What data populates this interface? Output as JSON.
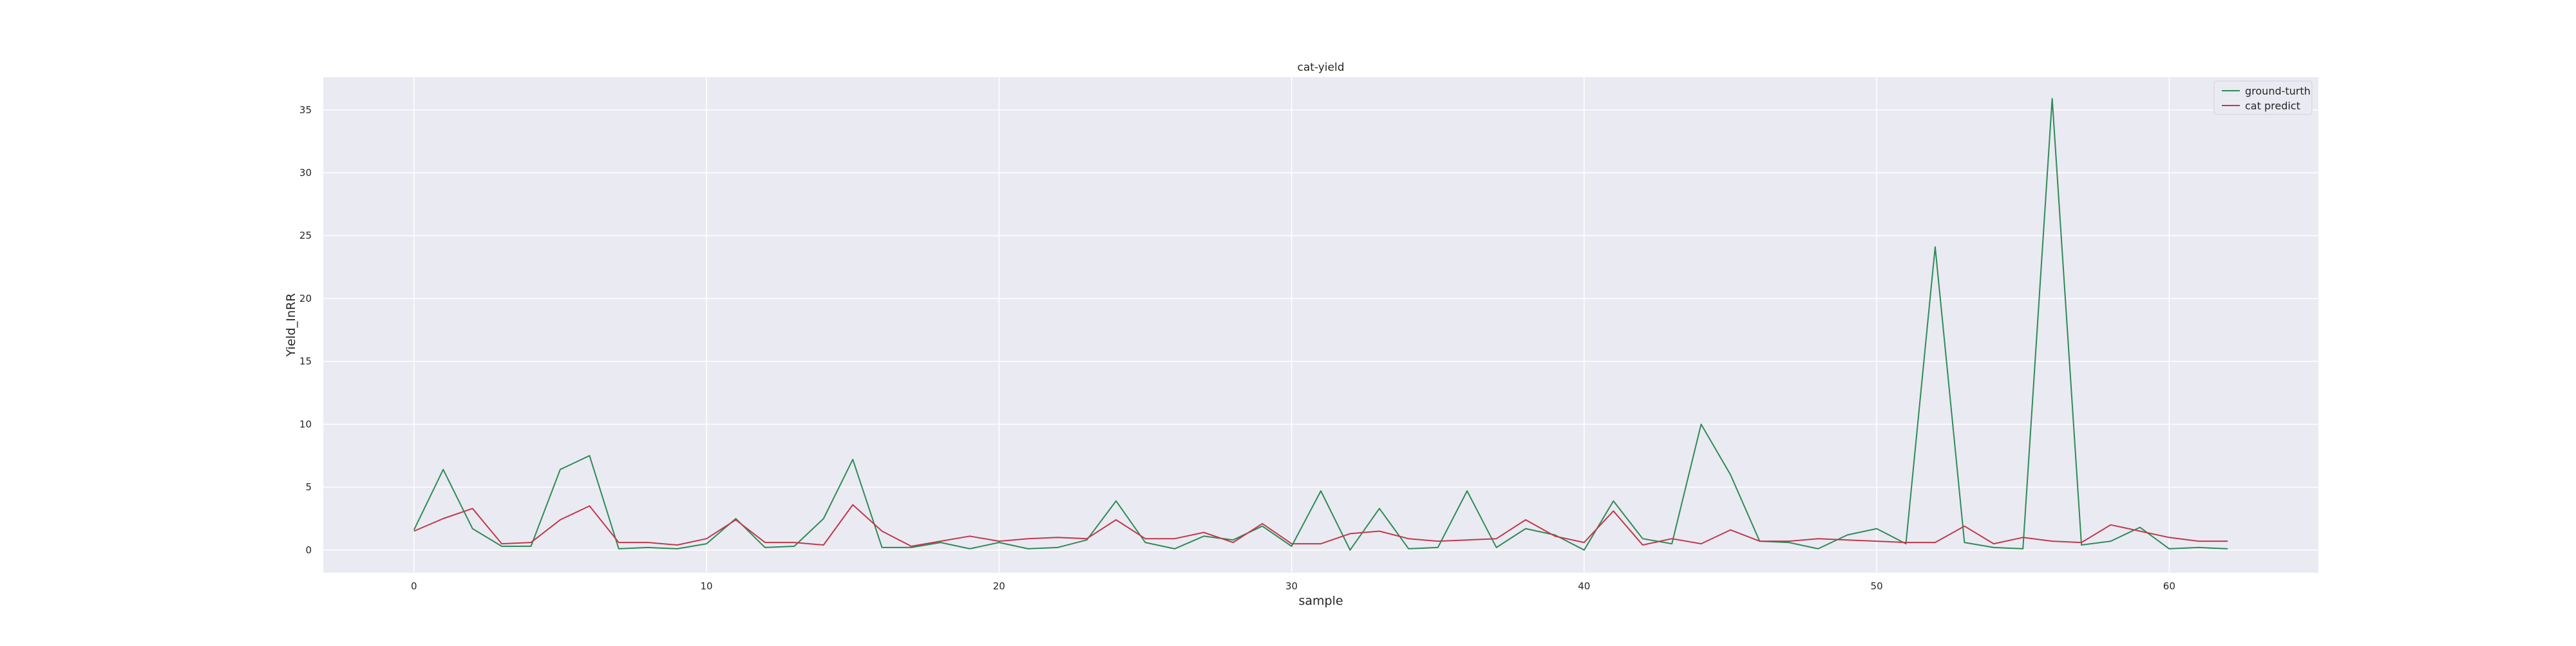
{
  "chart_data": {
    "type": "line",
    "title": "cat-yield",
    "xlabel": "sample",
    "ylabel": "Yield_InRR",
    "xlim": [
      -3.1,
      65.1
    ],
    "ylim": [
      -1.8,
      37.6
    ],
    "x_ticks": [
      0,
      10,
      20,
      30,
      40,
      50,
      60
    ],
    "y_ticks": [
      0,
      5,
      10,
      15,
      20,
      25,
      30,
      35
    ],
    "grid": true,
    "legend_position": "top-right",
    "colors": {
      "background": "#eaeaf2",
      "grid": "#ffffff"
    },
    "x": [
      0,
      1,
      2,
      3,
      4,
      5,
      6,
      7,
      8,
      9,
      10,
      11,
      12,
      13,
      14,
      15,
      16,
      17,
      18,
      19,
      20,
      21,
      22,
      23,
      24,
      25,
      26,
      27,
      28,
      29,
      30,
      31,
      32,
      33,
      34,
      35,
      36,
      37,
      38,
      39,
      40,
      41,
      42,
      43,
      44,
      45,
      46,
      47,
      48,
      49,
      50,
      51,
      52,
      53,
      54,
      55,
      56,
      57,
      58,
      59,
      60,
      61,
      62
    ],
    "series": [
      {
        "name": "ground-turth",
        "color": "#2e8b57",
        "values": [
          1.6,
          6.4,
          1.7,
          0.3,
          0.3,
          6.4,
          7.5,
          0.1,
          0.2,
          0.1,
          0.5,
          2.5,
          0.2,
          0.3,
          2.5,
          7.2,
          0.2,
          0.2,
          0.6,
          0.1,
          0.6,
          0.1,
          0.2,
          0.8,
          3.9,
          0.6,
          0.1,
          1.1,
          0.8,
          1.9,
          0.3,
          4.7,
          0.0,
          3.3,
          0.1,
          0.2,
          4.7,
          0.2,
          1.7,
          1.2,
          0.0,
          3.9,
          0.9,
          0.5,
          10.0,
          6.0,
          0.7,
          0.6,
          0.1,
          1.2,
          1.7,
          0.5,
          24.1,
          0.6,
          0.2,
          0.1,
          35.9,
          0.4,
          0.7,
          1.8,
          0.1,
          0.2,
          0.1
        ]
      },
      {
        "name": "cat predict",
        "color": "#c0394b",
        "values": [
          1.5,
          2.5,
          3.3,
          0.5,
          0.6,
          2.4,
          3.5,
          0.6,
          0.6,
          0.4,
          0.9,
          2.4,
          0.6,
          0.6,
          0.4,
          3.6,
          1.5,
          0.3,
          0.7,
          1.1,
          0.7,
          0.9,
          1.0,
          0.9,
          2.4,
          0.9,
          0.9,
          1.4,
          0.6,
          2.1,
          0.5,
          0.5,
          1.3,
          1.5,
          0.9,
          0.7,
          0.8,
          0.9,
          2.4,
          1.1,
          0.6,
          3.1,
          0.4,
          0.9,
          0.5,
          1.6,
          0.7,
          0.7,
          0.9,
          0.8,
          0.7,
          0.6,
          0.6,
          1.9,
          0.5,
          1.0,
          0.7,
          0.6,
          2.0,
          1.5,
          1.0,
          0.7,
          0.7
        ]
      }
    ]
  }
}
